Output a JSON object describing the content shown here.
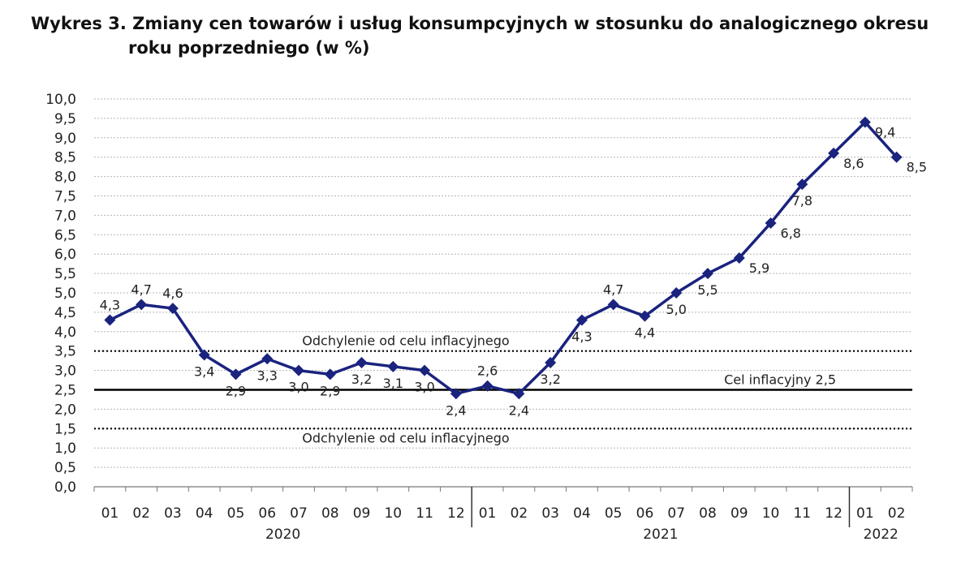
{
  "title": {
    "line1": "Wykres 3. Zmiany cen towarów i usług konsumpcyjnych w stosunku do analogicznego okresu",
    "line2": "roku poprzedniego (w %)"
  },
  "chart_data": {
    "type": "line",
    "title": "Wykres 3. Zmiany cen towarów i usług konsumpcyjnych w stosunku do analogicznego okresu roku poprzedniego (w %)",
    "categories": [
      "01",
      "02",
      "03",
      "04",
      "05",
      "06",
      "07",
      "08",
      "09",
      "10",
      "11",
      "12",
      "01",
      "02",
      "03",
      "04",
      "05",
      "06",
      "07",
      "08",
      "09",
      "10",
      "11",
      "12",
      "01",
      "02"
    ],
    "year_groups": [
      {
        "label": "2020",
        "start": 0,
        "end": 11
      },
      {
        "label": "2021",
        "start": 12,
        "end": 23
      },
      {
        "label": "2022",
        "start": 24,
        "end": 25
      }
    ],
    "series": [
      {
        "values": [
          4.3,
          4.7,
          4.6,
          3.4,
          2.9,
          3.3,
          3.0,
          2.9,
          3.2,
          3.1,
          3.0,
          2.4,
          2.6,
          2.4,
          3.2,
          4.3,
          4.7,
          4.4,
          5.0,
          5.5,
          5.9,
          6.8,
          7.8,
          8.6,
          9.4,
          8.5
        ],
        "labels": [
          "4,3",
          "4,7",
          "4,6",
          "3,4",
          "2,9",
          "3,3",
          "3,0",
          "2,9",
          "3,2",
          "3,1",
          "3,0",
          "2,4",
          "2,6",
          "2,4",
          "3,2",
          "4,3",
          "4,7",
          "4,4",
          "5,0",
          "5,5",
          "5,9",
          "6,8",
          "7,8",
          "8,6",
          "9,4",
          "8,5"
        ],
        "label_positions": [
          "above",
          "above",
          "above",
          "below",
          "below",
          "below",
          "below",
          "below",
          "below",
          "below",
          "below",
          "below",
          "above",
          "below",
          "below",
          "below",
          "above",
          "below",
          "below",
          "below",
          "right",
          "right",
          "below",
          "right",
          "right",
          "right"
        ],
        "color": "#1a237e"
      }
    ],
    "ylim": [
      0,
      10
    ],
    "y_ticks": [
      0,
      0.5,
      1,
      1.5,
      2,
      2.5,
      3,
      3.5,
      4,
      4.5,
      5,
      5.5,
      6,
      6.5,
      7,
      7.5,
      8,
      8.5,
      9,
      9.5,
      10
    ],
    "y_tick_labels": [
      "0,0",
      "0,5",
      "1,0",
      "1,5",
      "2,0",
      "2,5",
      "3,0",
      "3,5",
      "4,0",
      "4,5",
      "5,0",
      "5,5",
      "6,0",
      "6,5",
      "7,0",
      "7,5",
      "8,0",
      "8,5",
      "9,0",
      "9,5",
      "10,0"
    ],
    "grid": true,
    "reference_lines": [
      {
        "value": 3.5,
        "style": "dotted",
        "label": "Odchylenie od celu inflacyjnego",
        "label_side": "above"
      },
      {
        "value": 2.5,
        "style": "solid",
        "label": "Cel inflacyjny 2,5",
        "label_side": "above"
      },
      {
        "value": 1.5,
        "style": "dotted",
        "label": "Odchylenie od celu inflacyjnego",
        "label_side": "below"
      }
    ]
  }
}
